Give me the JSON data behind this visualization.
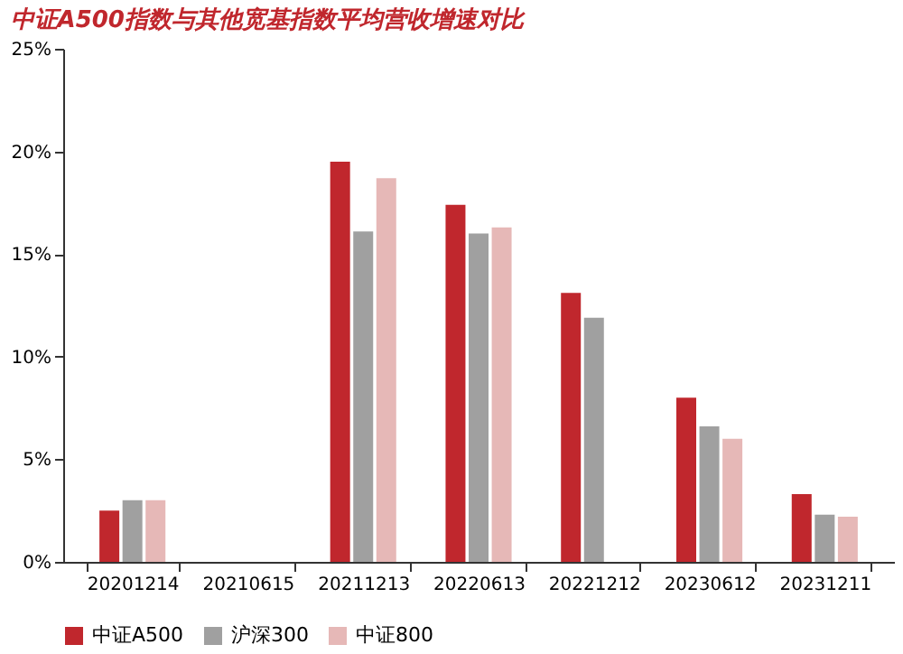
{
  "chart_data": {
    "type": "bar",
    "title": "中证A500指数与其他宽基指数平均营收增速对比",
    "categories": [
      "20201214",
      "20210615",
      "20211213",
      "20220613",
      "20221212",
      "20230612",
      "20231211"
    ],
    "series": [
      {
        "name": "中证A500",
        "color": "#c0272d",
        "values": [
          2.5,
          null,
          19.5,
          17.4,
          13.1,
          8.0,
          3.3
        ]
      },
      {
        "name": "沪深300",
        "color": "#a0a0a0",
        "values": [
          3.0,
          null,
          16.1,
          16.0,
          11.9,
          6.6,
          2.3
        ]
      },
      {
        "name": "中证800",
        "color": "#e6b8b7",
        "values": [
          3.0,
          null,
          18.7,
          16.3,
          null,
          6.0,
          2.2
        ]
      }
    ],
    "ylim": [
      0,
      25
    ],
    "yticks": [
      {
        "value": 0,
        "label": "0%"
      },
      {
        "value": 5,
        "label": "5%"
      },
      {
        "value": 10,
        "label": "10%"
      },
      {
        "value": 15,
        "label": "15%"
      },
      {
        "value": 20,
        "label": "20%"
      },
      {
        "value": 25,
        "label": "25%"
      }
    ],
    "grid": false,
    "legend": "bottom"
  }
}
